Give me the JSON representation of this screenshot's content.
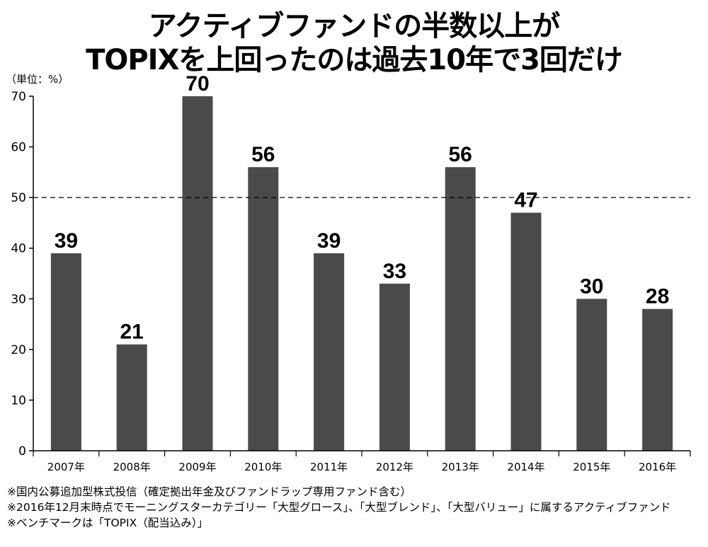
{
  "title_line1": "アクティブファンドの半数以上が",
  "title_line2": "TOPIXを上回ったのは過去10年で3回だけ",
  "unit_label": "（単位：%）",
  "notes": [
    "※国内公募追加型株式投信（確定拠出年金及びファンドラップ専用ファンド含む）",
    "※2016年12月末時点でモーニングスターカテゴリー「大型グロース」、「大型ブレンド」、「大型バリュー」に属するアクティブファンド",
    "※ベンチマークは「TOPIX（配当込み）」"
  ],
  "colors": {
    "bar": "#4a4a4a",
    "axis": "#000000",
    "reference_line": "#000000"
  },
  "chart_data": {
    "type": "bar",
    "categories": [
      "2007年",
      "2008年",
      "2009年",
      "2010年",
      "2011年",
      "2012年",
      "2013年",
      "2014年",
      "2015年",
      "2016年"
    ],
    "values": [
      39,
      21,
      70,
      56,
      39,
      33,
      56,
      47,
      30,
      28
    ],
    "data_labels": [
      "39",
      "21",
      "70",
      "56",
      "39",
      "33",
      "56",
      "47",
      "30",
      "28"
    ],
    "ylim": [
      0,
      70
    ],
    "yticks": [
      0,
      10,
      20,
      30,
      40,
      50,
      60,
      70
    ],
    "reference_line": {
      "value": 50,
      "style": "dashed"
    },
    "xlabel": "",
    "ylabel": "（単位：%）",
    "grid": false,
    "legend": "none"
  }
}
